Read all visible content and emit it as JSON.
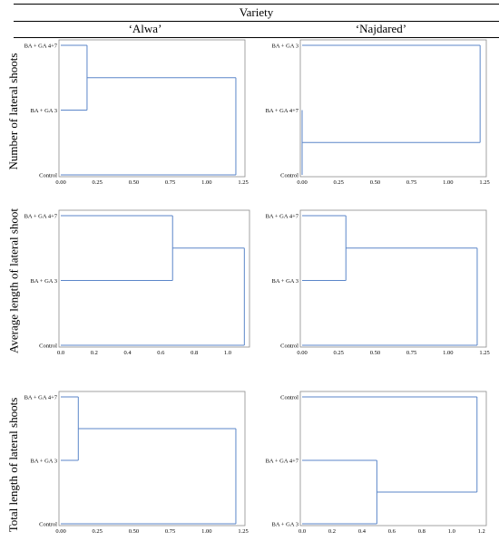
{
  "header": {
    "group_label": "Variety"
  },
  "columns": [
    "‘Alwa’",
    "‘Najdared’"
  ],
  "rows": [
    "Number of lateral shoots",
    "Average length of lateral shoot",
    "Total length of lateral shoots"
  ],
  "colors": {
    "link": "#5b86c9",
    "frame": "#8c8c8c"
  },
  "chart_data": [
    {
      "type": "dendrogram",
      "variety": "‘Alwa’",
      "trait": "Number of lateral shoots",
      "leaves": [
        "BA + GA 4+7",
        "BA + GA 3",
        "Control"
      ],
      "merges": [
        {
          "members": [
            "BA + GA 4+7",
            "BA + GA 3"
          ],
          "height": 0.18
        },
        {
          "members": [
            "cluster",
            "Control"
          ],
          "height": 1.2
        }
      ],
      "xticks": [
        "0.00",
        "0.25",
        "0.50",
        "0.75",
        "1.00",
        "1.25"
      ],
      "xlim": [
        0,
        1.25
      ]
    },
    {
      "type": "dendrogram",
      "variety": "‘Najdared’",
      "trait": "Number of lateral shoots",
      "leaves": [
        "BA + GA 3",
        "BA + GA 4+7",
        "Control"
      ],
      "merges": [
        {
          "members": [
            "BA + GA 4+7",
            "Control"
          ],
          "height": 0
        },
        {
          "members": [
            "BA + GA 3",
            "cluster"
          ],
          "height": 1.22
        }
      ],
      "xticks": [
        "0.00",
        "0.25",
        "0.50",
        "0.75",
        "1.00",
        "1.25"
      ],
      "xlim": [
        0,
        1.25
      ]
    },
    {
      "type": "dendrogram",
      "variety": "‘Alwa’",
      "trait": "Average length of lateral shoot",
      "leaves": [
        "BA + GA 4+7",
        "BA + GA 3",
        "Control"
      ],
      "merges": [
        {
          "members": [
            "BA + GA 4+7",
            "BA + GA 3"
          ],
          "height": 0.67
        },
        {
          "members": [
            "cluster",
            "Control"
          ],
          "height": 1.1
        }
      ],
      "xticks": [
        "0.0",
        "0.2",
        "0.4",
        "0.6",
        "0.8",
        "1.0"
      ],
      "xlim": [
        0,
        1.12
      ]
    },
    {
      "type": "dendrogram",
      "variety": "‘Najdared’",
      "trait": "Average length of lateral shoot",
      "leaves": [
        "BA + GA 4+7",
        "BA + GA 3",
        "Control"
      ],
      "merges": [
        {
          "members": [
            "BA + GA 4+7",
            "BA + GA 3"
          ],
          "height": 0.3
        },
        {
          "members": [
            "cluster",
            "Control"
          ],
          "height": 1.2
        }
      ],
      "xticks": [
        "0.00",
        "0.25",
        "0.50",
        "0.75",
        "1.00",
        "1.25"
      ],
      "xlim": [
        0,
        1.25
      ]
    },
    {
      "type": "dendrogram",
      "variety": "‘Alwa’",
      "trait": "Total length of lateral shoots",
      "leaves": [
        "BA + GA 4+7",
        "BA + GA 3",
        "Control"
      ],
      "merges": [
        {
          "members": [
            "BA + GA 4+7",
            "BA + GA 3"
          ],
          "height": 0.12
        },
        {
          "members": [
            "cluster",
            "Control"
          ],
          "height": 1.2
        }
      ],
      "xticks": [
        "0.00",
        "0.25",
        "0.50",
        "0.75",
        "1.00",
        "1.25"
      ],
      "xlim": [
        0,
        1.25
      ]
    },
    {
      "type": "dendrogram",
      "variety": "‘Najdared’",
      "trait": "Total length of lateral shoots",
      "leaves": [
        "Control",
        "BA + GA 4+7",
        "BA + GA 3"
      ],
      "merges": [
        {
          "members": [
            "BA + GA 4+7",
            "BA + GA 3"
          ],
          "height": 0.5
        },
        {
          "members": [
            "Control",
            "cluster"
          ],
          "height": 1.17
        }
      ],
      "xticks": [
        "0.0",
        "0.2",
        "0.4",
        "0.6",
        "0.8",
        "1.0",
        "1.2"
      ],
      "xlim": [
        0,
        1.22
      ]
    }
  ]
}
